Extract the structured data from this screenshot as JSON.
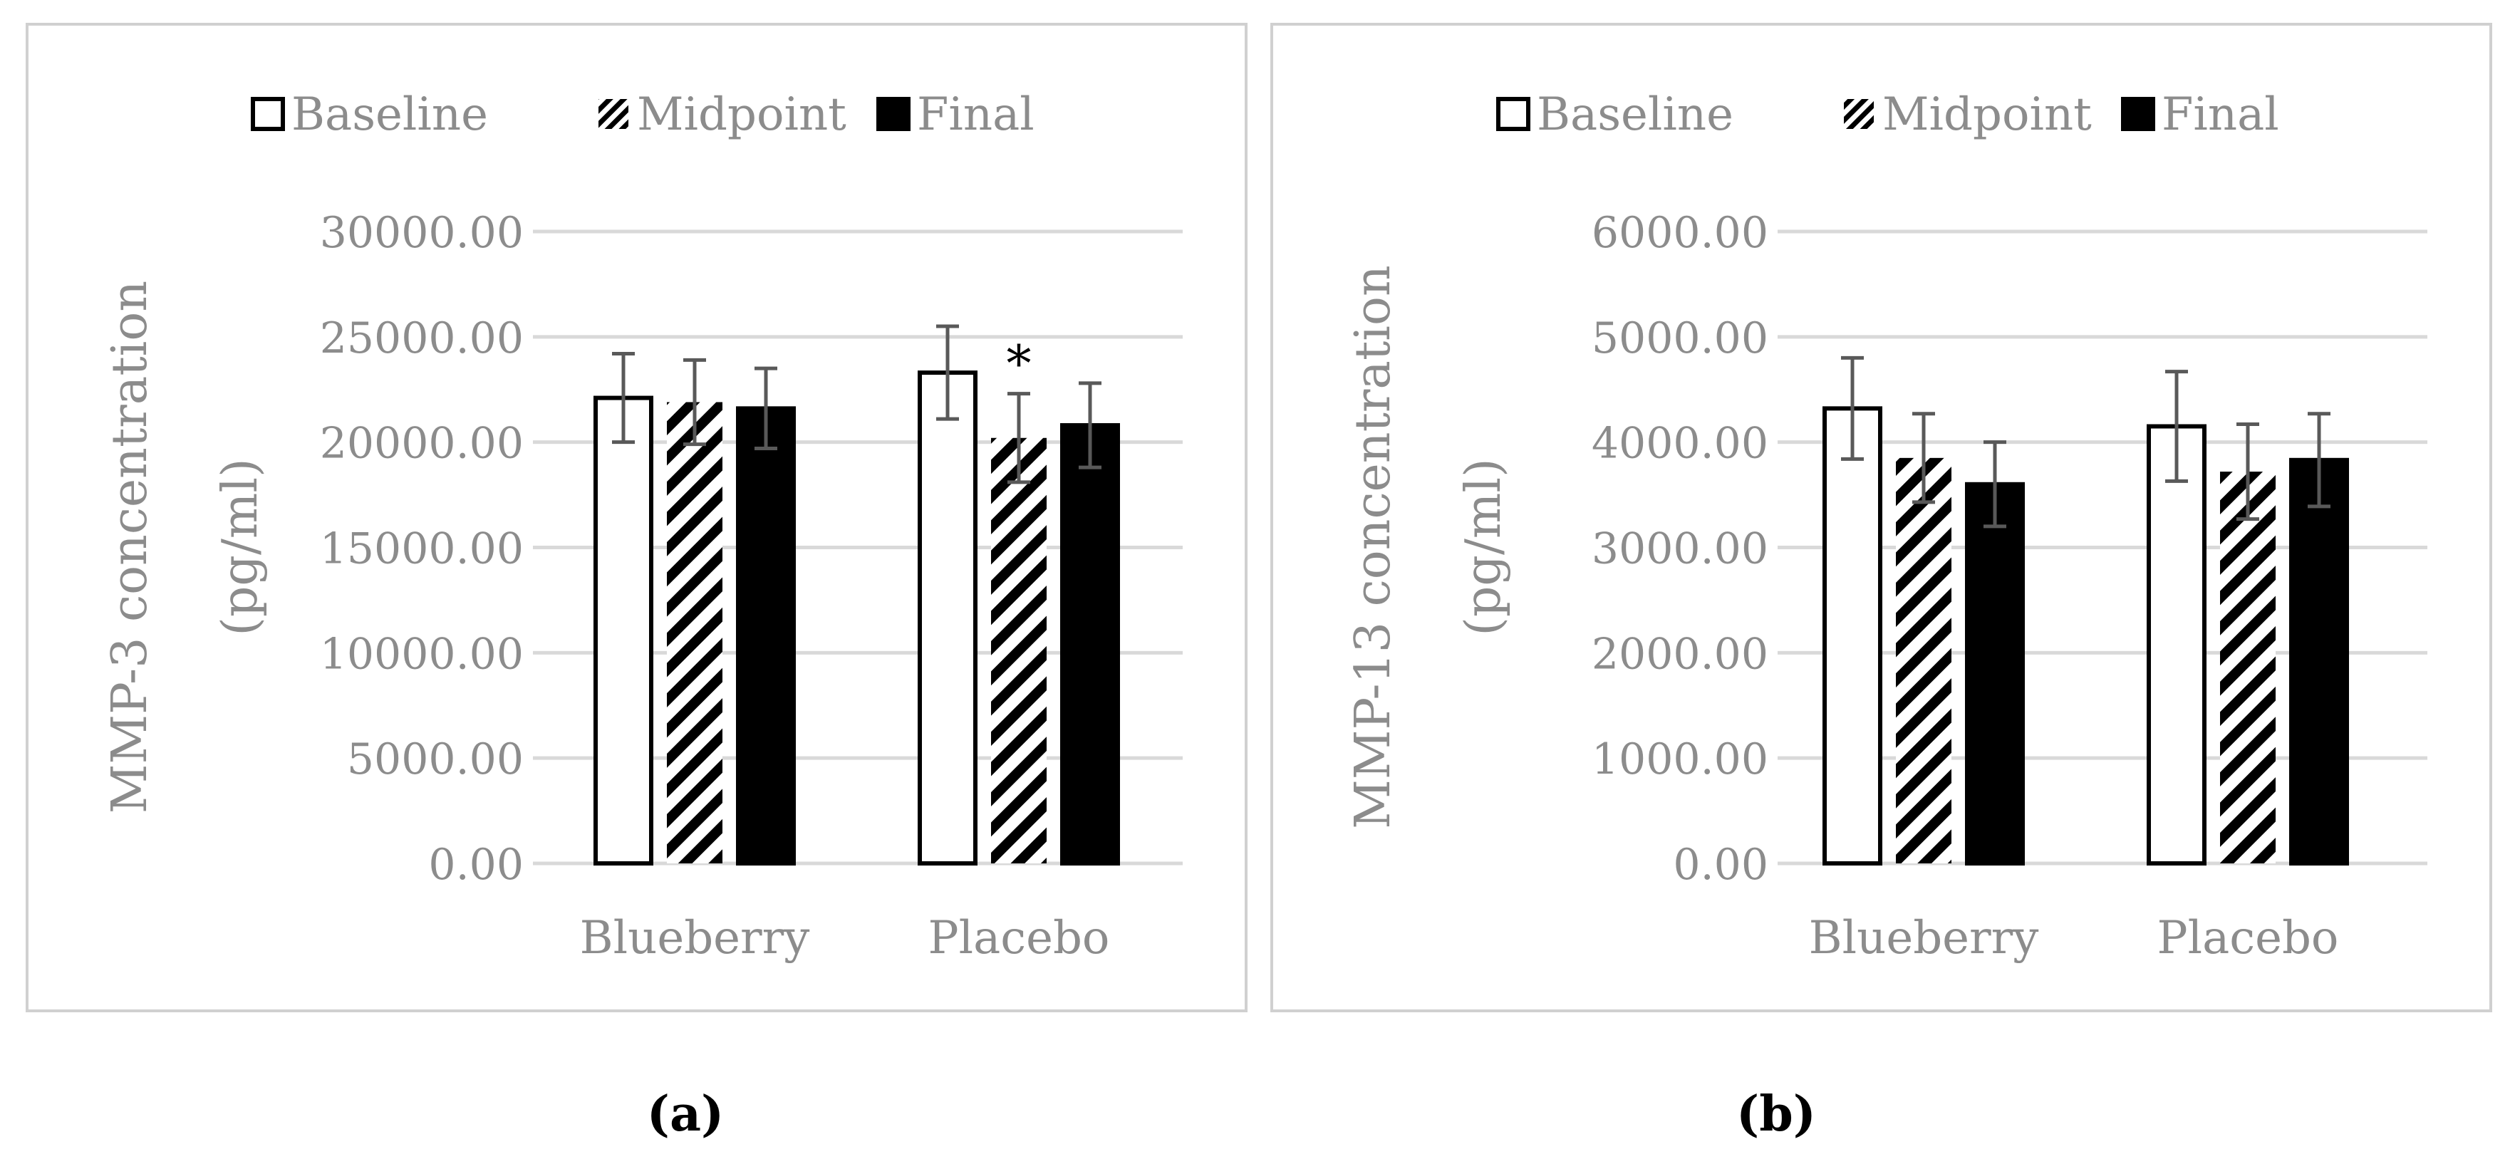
{
  "chart_data": [
    {
      "type": "bar",
      "panel": "(a)",
      "title": "",
      "xlabel": "",
      "ylabel_lines": [
        "MMP-3 concentration",
        "(pg/ml)"
      ],
      "categories": [
        "Blueberry",
        "Placebo"
      ],
      "ylim": [
        0,
        30000
      ],
      "yticks": [
        "0.00",
        "5000.00",
        "10000.00",
        "15000.00",
        "20000.00",
        "25000.00",
        "30000.00"
      ],
      "legend": [
        "Baseline",
        "Midpoint",
        "Final"
      ],
      "legend_position": "top-center",
      "grid": true,
      "series": [
        {
          "name": "Baseline",
          "style": "open",
          "values": [
            22100,
            23300
          ],
          "errors": [
            2100,
            2200
          ]
        },
        {
          "name": "Midpoint",
          "style": "hatched",
          "values": [
            21900,
            20200
          ],
          "errors": [
            2000,
            2100
          ]
        },
        {
          "name": "Final",
          "style": "solid",
          "values": [
            21600,
            20800
          ],
          "errors": [
            1900,
            2000
          ]
        }
      ],
      "annotations": [
        {
          "text": "*",
          "category": "Placebo",
          "series": "Midpoint"
        }
      ]
    },
    {
      "type": "bar",
      "panel": "(b)",
      "title": "",
      "xlabel": "",
      "ylabel_lines": [
        "MMP-13 concentration",
        "(pg/ml)"
      ],
      "categories": [
        "Blueberry",
        "Placebo"
      ],
      "ylim": [
        0,
        6000
      ],
      "yticks": [
        "0.00",
        "1000.00",
        "2000.00",
        "3000.00",
        "4000.00",
        "5000.00",
        "6000.00"
      ],
      "legend": [
        "Baseline",
        "Midpoint",
        "Final"
      ],
      "legend_position": "top-center",
      "grid": true,
      "series": [
        {
          "name": "Baseline",
          "style": "open",
          "values": [
            4320,
            4150
          ],
          "errors": [
            480,
            520
          ]
        },
        {
          "name": "Midpoint",
          "style": "hatched",
          "values": [
            3850,
            3720
          ],
          "errors": [
            420,
            450
          ]
        },
        {
          "name": "Final",
          "style": "solid",
          "values": [
            3600,
            3830
          ],
          "errors": [
            400,
            440
          ]
        }
      ],
      "annotations": []
    }
  ],
  "panel_labels": [
    "(a)",
    "(b)"
  ]
}
